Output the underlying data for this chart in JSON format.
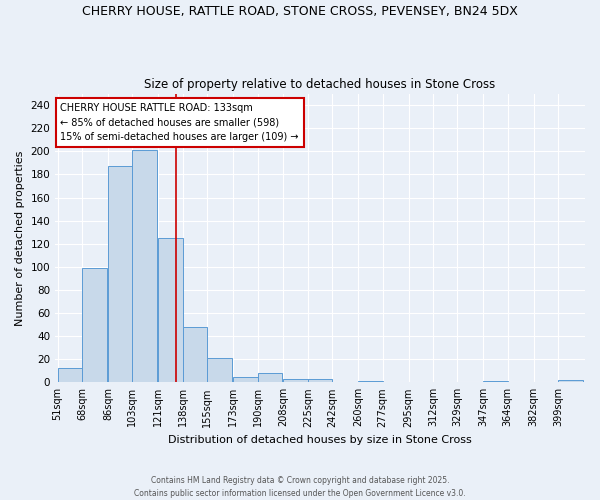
{
  "title1": "CHERRY HOUSE, RATTLE ROAD, STONE CROSS, PEVENSEY, BN24 5DX",
  "title2": "Size of property relative to detached houses in Stone Cross",
  "xlabel": "Distribution of detached houses by size in Stone Cross",
  "ylabel": "Number of detached properties",
  "bin_edges": [
    51,
    68,
    86,
    103,
    121,
    138,
    155,
    173,
    190,
    208,
    225,
    242,
    260,
    277,
    295,
    312,
    329,
    347,
    364,
    382,
    399
  ],
  "bar_heights": [
    12,
    99,
    187,
    201,
    125,
    48,
    21,
    5,
    8,
    3,
    3,
    0,
    1,
    0,
    0,
    0,
    0,
    1,
    0,
    0,
    2
  ],
  "bar_color": "#c8d9ea",
  "bar_edge_color": "#5b9bd5",
  "red_line_x": 133,
  "annotation_title": "CHERRY HOUSE RATTLE ROAD: 133sqm",
  "annotation_line1": "← 85% of detached houses are smaller (598)",
  "annotation_line2": "15% of semi-detached houses are larger (109) →",
  "annotation_box_color": "#ffffff",
  "annotation_box_edge": "#cc0000",
  "ylim": [
    0,
    250
  ],
  "yticks": [
    0,
    20,
    40,
    60,
    80,
    100,
    120,
    140,
    160,
    180,
    200,
    220,
    240
  ],
  "background_color": "#eaf0f8",
  "grid_color": "#ffffff",
  "footer1": "Contains HM Land Registry data © Crown copyright and database right 2025.",
  "footer2": "Contains public sector information licensed under the Open Government Licence v3.0."
}
